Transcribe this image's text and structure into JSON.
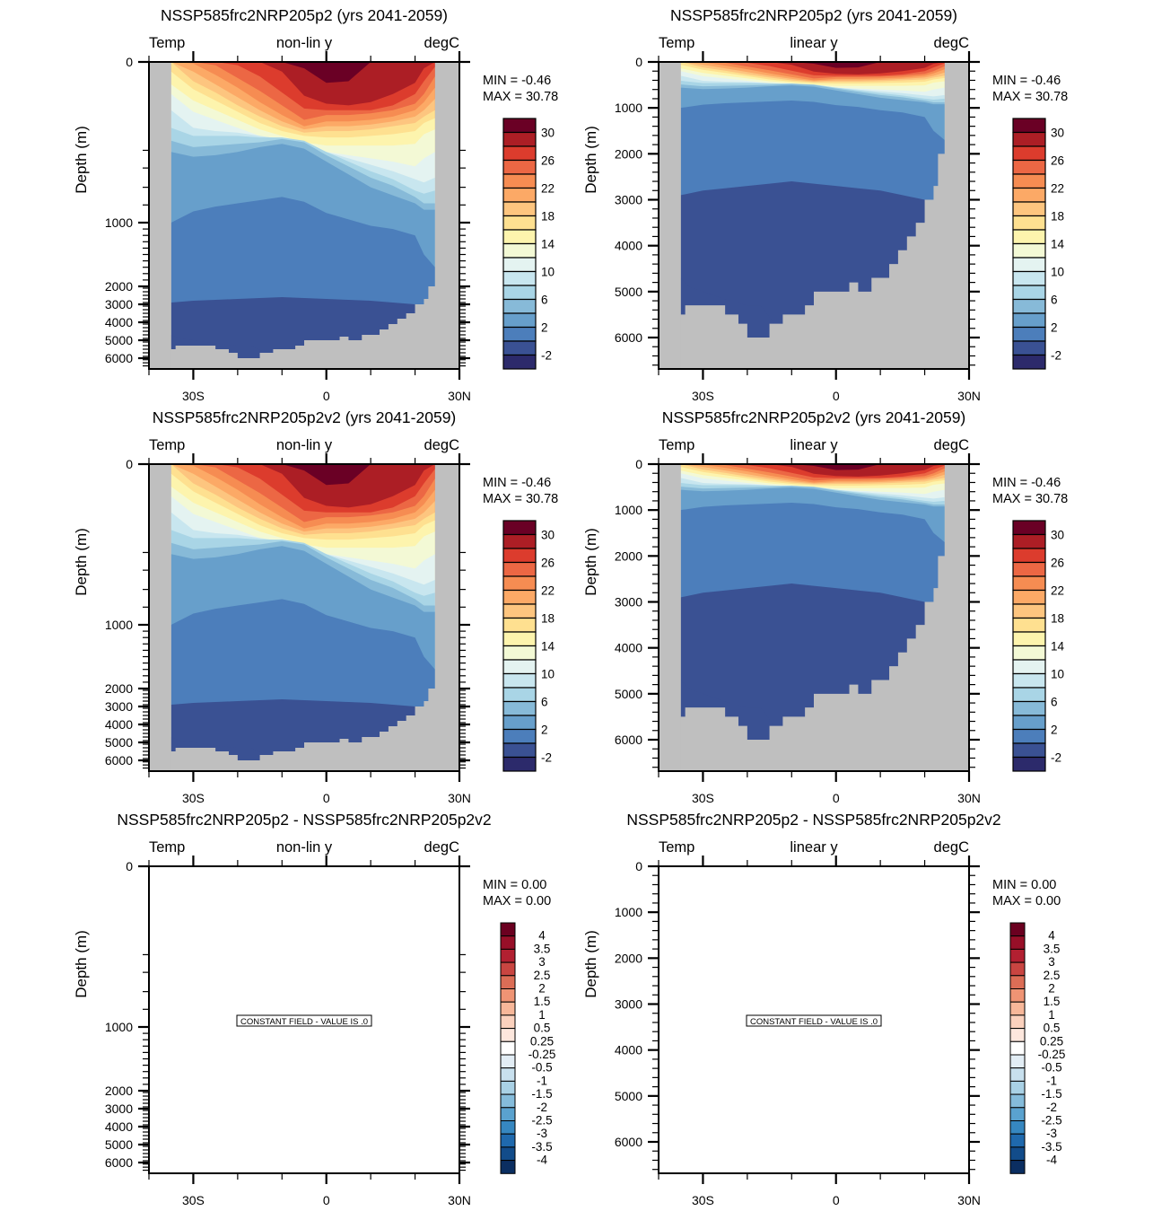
{
  "colors": {
    "land": "#bfbfbf",
    "temp_palette": [
      "#2c2a6b",
      "#3a5193",
      "#4c7ebb",
      "#679fcb",
      "#87bad8",
      "#a9d5e6",
      "#c8e6ef",
      "#e4f3f1",
      "#f3f9d5",
      "#fdf4ad",
      "#fee090",
      "#fdc57f",
      "#fca966",
      "#f68c52",
      "#ec6744",
      "#dc3c2d",
      "#ac1e25",
      "#6a0025"
    ],
    "diff_palette": [
      "#0b2e61",
      "#124c8a",
      "#1f69ad",
      "#3687c0",
      "#5aa2cf",
      "#85bcdb",
      "#a9d1e5",
      "#c8e0ee",
      "#e2edf5",
      "#ffffff",
      "#fde7dd",
      "#fbd1bd",
      "#f7b799",
      "#ef9474",
      "#dc6d56",
      "#c94541",
      "#b22031",
      "#980f28",
      "#6b0020"
    ]
  },
  "chart_data": [
    {
      "type": "heatmap",
      "title": "NSSP585frc2NRP205p2 (yrs 2041-2059)",
      "left_label": "Temp",
      "center_label": "non-lin y",
      "right_label": "degC",
      "ylabel": "Depth (m)",
      "yaxis": "nonlinear",
      "yticks": [
        "0",
        "1000",
        "2000",
        "3000",
        "4000",
        "5000",
        "6000"
      ],
      "xticks": [
        "30S",
        "0",
        "30N"
      ],
      "xlim": [
        -40,
        30
      ],
      "ylim": [
        0,
        6700
      ],
      "min_label": "MIN =  -0.46",
      "max_label": "MAX =  30.78",
      "field": "temp",
      "colorbar": "temp"
    },
    {
      "type": "heatmap",
      "title": "NSSP585frc2NRP205p2 (yrs 2041-2059)",
      "left_label": "Temp",
      "center_label": "linear y",
      "right_label": "degC",
      "ylabel": "Depth (m)",
      "yaxis": "linear",
      "yticks": [
        "0",
        "1000",
        "2000",
        "3000",
        "4000",
        "5000",
        "6000"
      ],
      "xticks": [
        "30S",
        "0",
        "30N"
      ],
      "xlim": [
        -40,
        30
      ],
      "ylim": [
        0,
        6700
      ],
      "min_label": "MIN =  -0.46",
      "max_label": "MAX =  30.78",
      "field": "temp",
      "colorbar": "temp"
    },
    {
      "type": "heatmap",
      "title": "NSSP585frc2NRP205p2v2 (yrs 2041-2059)",
      "left_label": "Temp",
      "center_label": "non-lin y",
      "right_label": "degC",
      "ylabel": "Depth (m)",
      "yaxis": "nonlinear",
      "yticks": [
        "0",
        "1000",
        "2000",
        "3000",
        "4000",
        "5000",
        "6000"
      ],
      "xticks": [
        "30S",
        "0",
        "30N"
      ],
      "xlim": [
        -40,
        30
      ],
      "ylim": [
        0,
        6700
      ],
      "min_label": "MIN =  -0.46",
      "max_label": "MAX =  30.78",
      "field": "temp",
      "colorbar": "temp"
    },
    {
      "type": "heatmap",
      "title": "NSSP585frc2NRP205p2v2 (yrs 2041-2059)",
      "left_label": "Temp",
      "center_label": "linear y",
      "right_label": "degC",
      "ylabel": "Depth (m)",
      "yaxis": "linear",
      "yticks": [
        "0",
        "1000",
        "2000",
        "3000",
        "4000",
        "5000",
        "6000"
      ],
      "xticks": [
        "30S",
        "0",
        "30N"
      ],
      "xlim": [
        -40,
        30
      ],
      "ylim": [
        0,
        6700
      ],
      "min_label": "MIN =  -0.46",
      "max_label": "MAX =  30.78",
      "field": "temp",
      "colorbar": "temp"
    },
    {
      "type": "heatmap",
      "title": "NSSP585frc2NRP205p2 - NSSP585frc2NRP205p2v2",
      "left_label": "Temp",
      "center_label": "non-lin y",
      "right_label": "degC",
      "ylabel": "Depth (m)",
      "yaxis": "nonlinear",
      "yticks": [
        "0",
        "1000",
        "2000",
        "3000",
        "4000",
        "5000",
        "6000"
      ],
      "xticks": [
        "30S",
        "0",
        "30N"
      ],
      "xlim": [
        -40,
        30
      ],
      "ylim": [
        0,
        6700
      ],
      "min_label": "MIN =   0.00",
      "max_label": "MAX =   0.00",
      "field": "constant",
      "constant_text": "CONSTANT FIELD - VALUE IS .0",
      "colorbar": "diff"
    },
    {
      "type": "heatmap",
      "title": "NSSP585frc2NRP205p2 - NSSP585frc2NRP205p2v2",
      "left_label": "Temp",
      "center_label": "linear y",
      "right_label": "degC",
      "ylabel": "Depth (m)",
      "yaxis": "linear",
      "yticks": [
        "0",
        "1000",
        "2000",
        "3000",
        "4000",
        "5000",
        "6000"
      ],
      "xticks": [
        "30S",
        "0",
        "30N"
      ],
      "xlim": [
        -40,
        30
      ],
      "ylim": [
        0,
        6700
      ],
      "min_label": "MIN =   0.00",
      "max_label": "MAX =   0.00",
      "field": "constant",
      "constant_text": "CONSTANT FIELD - VALUE IS .0",
      "colorbar": "diff"
    }
  ],
  "colorbars": {
    "temp": {
      "levels": [
        "-2",
        "0",
        "2",
        "4",
        "6",
        "8",
        "10",
        "12",
        "14",
        "16",
        "18",
        "20",
        "22",
        "24",
        "26",
        "28",
        "30"
      ],
      "labels": [
        "30",
        "26",
        "22",
        "18",
        "14",
        "10",
        "6",
        "2",
        "-2"
      ]
    },
    "diff": {
      "labels": [
        "4",
        "3.5",
        "3",
        "2.5",
        "2",
        "1.5",
        "1",
        "0.5",
        "0.25",
        "-0.25",
        "-0.5",
        "-1",
        "-1.5",
        "-2",
        "-2.5",
        "-3",
        "-3.5",
        "-4"
      ]
    }
  },
  "temp_field": {
    "lats": [
      -35,
      -30,
      -25,
      -20,
      -15,
      -10,
      -5,
      0,
      5,
      10,
      15,
      20,
      22,
      24.5
    ],
    "isotherms": [
      {
        "value": 30,
        "depth": [
          0,
          0,
          0,
          0,
          0,
          0,
          40,
          130,
          120,
          0,
          0,
          0,
          0,
          0
        ]
      },
      {
        "value": 28,
        "depth": [
          0,
          0,
          0,
          0,
          0,
          60,
          210,
          260,
          270,
          250,
          200,
          130,
          40,
          0
        ]
      },
      {
        "value": 26,
        "depth": [
          0,
          0,
          0,
          20,
          90,
          190,
          290,
          300,
          300,
          300,
          270,
          200,
          120,
          30
        ]
      },
      {
        "value": 24,
        "depth": [
          0,
          0,
          20,
          100,
          180,
          270,
          360,
          330,
          330,
          320,
          300,
          260,
          200,
          90
        ]
      },
      {
        "value": 22,
        "depth": [
          0,
          10,
          80,
          160,
          250,
          330,
          400,
          370,
          370,
          360,
          340,
          300,
          250,
          160
        ]
      },
      {
        "value": 20,
        "depth": [
          0,
          60,
          140,
          220,
          300,
          370,
          420,
          400,
          400,
          390,
          370,
          340,
          300,
          230
        ]
      },
      {
        "value": 18,
        "depth": [
          0,
          120,
          190,
          270,
          340,
          400,
          440,
          430,
          430,
          420,
          400,
          380,
          340,
          300
        ]
      },
      {
        "value": 16,
        "depth": [
          60,
          170,
          240,
          310,
          380,
          430,
          460,
          470,
          470,
          460,
          450,
          430,
          380,
          350
        ]
      },
      {
        "value": 14,
        "depth": [
          140,
          240,
          300,
          360,
          420,
          460,
          500,
          520,
          520,
          520,
          520,
          510,
          450,
          420
        ]
      },
      {
        "value": 12,
        "depth": [
          200,
          310,
          360,
          410,
          460,
          500,
          540,
          560,
          580,
          600,
          620,
          650,
          600,
          560
        ]
      },
      {
        "value": 10,
        "depth": [
          300,
          410,
          430,
          440,
          460,
          480,
          510,
          560,
          600,
          640,
          680,
          730,
          750,
          720
        ]
      },
      {
        "value": 8,
        "depth": [
          410,
          460,
          460,
          460,
          470,
          470,
          490,
          560,
          620,
          680,
          730,
          800,
          820,
          800
        ]
      },
      {
        "value": 6,
        "depth": [
          490,
          530,
          520,
          510,
          500,
          480,
          500,
          580,
          650,
          720,
          770,
          840,
          880,
          880
        ]
      },
      {
        "value": 4,
        "depth": [
          560,
          590,
          580,
          560,
          530,
          510,
          540,
          620,
          700,
          780,
          830,
          880,
          920,
          920
        ]
      },
      {
        "value": 2,
        "depth": [
          1000,
          930,
          900,
          880,
          860,
          840,
          870,
          940,
          980,
          1050,
          1100,
          1200,
          1500,
          1700
        ]
      },
      {
        "value": 0,
        "depth": [
          2900,
          2800,
          2750,
          2700,
          2650,
          2600,
          2650,
          2700,
          2750,
          2800,
          2900,
          3000,
          3100,
          3200
        ]
      }
    ],
    "bottom_water_boundary": {
      "lats": [
        -35,
        -33,
        -30,
        -27,
        -24,
        -20,
        -17
      ],
      "depth": [
        4700,
        4900,
        5000,
        5100,
        5200,
        5300,
        5300
      ]
    },
    "bathymetry": {
      "lats": [
        -40,
        -35,
        -35,
        -34,
        -34,
        -25,
        -25,
        -22,
        -22,
        -20,
        -20,
        -15,
        -15,
        -12,
        -12,
        -7,
        -7,
        -5,
        -5,
        3,
        3,
        5,
        5,
        8,
        8,
        12,
        12,
        14,
        14,
        16,
        16,
        18,
        18,
        20,
        20,
        22,
        22,
        23,
        23,
        24.5,
        24.5,
        30
      ],
      "depth": [
        0,
        0,
        5500,
        5500,
        5300,
        5300,
        5500,
        5500,
        5700,
        5700,
        6000,
        6000,
        5700,
        5700,
        5500,
        5500,
        5300,
        5300,
        5000,
        5000,
        4800,
        4800,
        5000,
        5000,
        4700,
        4700,
        4400,
        4400,
        4100,
        4100,
        3800,
        3800,
        3500,
        3500,
        3000,
        3000,
        2700,
        2700,
        2000,
        2000,
        0,
        0
      ]
    }
  }
}
